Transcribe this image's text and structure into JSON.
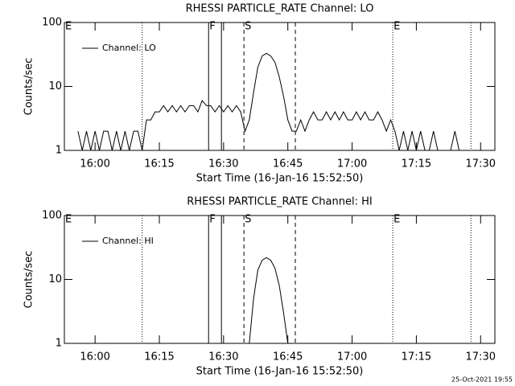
{
  "chart_data": [
    {
      "type": "line",
      "title": "RHESSI PARTICLE_RATE Channel: LO",
      "x_label": "Start Time (16-Jan-16 15:52:50)",
      "y_label": "Counts/sec",
      "x": [
        "15:56",
        "15:57",
        "15:58",
        "15:59",
        "16:00",
        "16:01",
        "16:02",
        "16:03",
        "16:04",
        "16:05",
        "16:06",
        "16:07",
        "16:08",
        "16:09",
        "16:10",
        "16:11",
        "16:12",
        "16:13",
        "16:14",
        "16:15",
        "16:16",
        "16:17",
        "16:18",
        "16:19",
        "16:20",
        "16:21",
        "16:22",
        "16:23",
        "16:24",
        "16:25",
        "16:26",
        "16:27",
        "16:28",
        "16:29",
        "16:30",
        "16:31",
        "16:32",
        "16:33",
        "16:34",
        "16:35",
        "16:36",
        "16:37",
        "16:38",
        "16:39",
        "16:40",
        "16:41",
        "16:42",
        "16:43",
        "16:44",
        "16:45",
        "16:46",
        "16:47",
        "16:48",
        "16:49",
        "16:50",
        "16:51",
        "16:52",
        "16:53",
        "16:54",
        "16:55",
        "16:56",
        "16:57",
        "16:58",
        "16:59",
        "17:00",
        "17:01",
        "17:02",
        "17:03",
        "17:04",
        "17:05",
        "17:06",
        "17:07",
        "17:08",
        "17:09",
        "17:10",
        "17:11",
        "17:12",
        "17:13",
        "17:14",
        "17:15",
        "17:16",
        "17:17",
        "17:18",
        "17:19",
        "17:20",
        "17:21",
        "17:22",
        "17:23",
        "17:24",
        "17:25"
      ],
      "series": [
        {
          "name": "Channel: LO",
          "color": "#000000",
          "values": [
            2,
            1,
            2,
            1,
            2,
            1,
            2,
            2,
            1,
            2,
            1,
            2,
            1,
            2,
            2,
            1,
            3,
            3,
            4,
            4,
            5,
            4,
            5,
            4,
            5,
            4,
            5,
            5,
            4,
            6,
            5,
            5,
            4,
            5,
            4,
            5,
            4,
            5,
            4,
            2,
            3,
            8,
            20,
            30,
            33,
            30,
            24,
            14,
            7,
            3,
            2,
            2,
            3,
            2,
            3,
            4,
            3,
            3,
            4,
            3,
            4,
            3,
            4,
            3,
            3,
            4,
            3,
            4,
            3,
            3,
            4,
            3,
            2,
            3,
            2,
            1,
            2,
            1,
            2,
            1,
            2,
            1,
            1,
            2,
            1,
            1,
            1,
            1,
            2,
            1
          ]
        }
      ],
      "xlim": [
        "15:52:50",
        "17:33:20"
      ],
      "xticks": [
        "16:00",
        "16:15",
        "16:30",
        "16:45",
        "17:00",
        "17:15",
        "17:30"
      ],
      "ylim": [
        1,
        100
      ],
      "yticks": [
        1,
        10,
        100
      ],
      "log_y": true,
      "legend": "upper left",
      "events": [
        {
          "x": "15:52:50",
          "label": "E"
        },
        {
          "x": "16:11",
          "style": "dotted"
        },
        {
          "x": "16:26:30",
          "style": "solid",
          "label": "F"
        },
        {
          "x": "16:29:30",
          "style": "solid"
        },
        {
          "x": "16:34:45",
          "style": "dashed",
          "label": "S"
        },
        {
          "x": "16:46:45",
          "style": "dashed"
        },
        {
          "x": "17:09:30",
          "style": "dotted",
          "label": "E"
        },
        {
          "x": "17:27:45",
          "style": "dotted"
        }
      ]
    },
    {
      "type": "line",
      "title": "RHESSI PARTICLE_RATE Channel: HI",
      "x_label": "Start Time (16-Jan-16 15:52:50)",
      "y_label": "Counts/sec",
      "x": [
        "16:36",
        "16:37",
        "16:38",
        "16:39",
        "16:40",
        "16:41",
        "16:42",
        "16:43",
        "16:44",
        "16:45"
      ],
      "series": [
        {
          "name": "Channel: HI",
          "color": "#000000",
          "values": [
            1,
            5,
            14,
            20,
            22,
            20,
            15,
            8,
            3,
            1
          ]
        }
      ],
      "xlim": [
        "15:52:50",
        "17:33:20"
      ],
      "xticks": [
        "16:00",
        "16:15",
        "16:30",
        "16:45",
        "17:00",
        "17:15",
        "17:30"
      ],
      "ylim": [
        1,
        100
      ],
      "yticks": [
        1,
        10,
        100
      ],
      "log_y": true,
      "legend": "upper left",
      "events": [
        {
          "x": "15:52:50",
          "label": "E"
        },
        {
          "x": "16:11",
          "style": "dotted"
        },
        {
          "x": "16:26:30",
          "style": "solid",
          "label": "F"
        },
        {
          "x": "16:29:30",
          "style": "solid"
        },
        {
          "x": "16:34:45",
          "style": "dashed",
          "label": "S"
        },
        {
          "x": "16:46:45",
          "style": "dashed"
        },
        {
          "x": "17:09:30",
          "style": "dotted",
          "label": "E"
        },
        {
          "x": "17:27:45",
          "style": "dotted"
        }
      ]
    }
  ],
  "footer": "25-Oct-2021 19:55"
}
